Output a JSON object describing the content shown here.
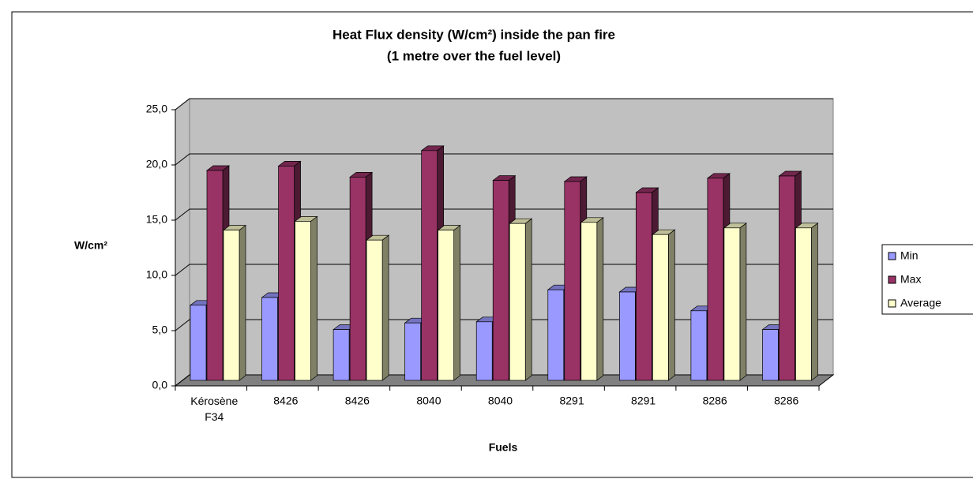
{
  "chart_data": {
    "type": "bar3d",
    "title": "Heat Flux density (W/cm²) inside the pan fire",
    "subtitle": "(1 metre over the fuel level)",
    "x_label": "Fuels",
    "y_label": "W/cm²",
    "categories": [
      "Kérosène F34",
      "8426",
      "8426",
      "8040",
      "8040",
      "8291",
      "8291",
      "8286",
      "8286"
    ],
    "series": [
      {
        "name": "Min",
        "color": "#9999ff",
        "values": [
          6.8,
          7.5,
          4.6,
          5.2,
          5.3,
          8.2,
          8.0,
          6.3,
          4.6
        ]
      },
      {
        "name": "Max",
        "color": "#993366",
        "values": [
          19.0,
          19.4,
          18.4,
          20.8,
          18.1,
          18.0,
          17.0,
          18.3,
          18.5
        ]
      },
      {
        "name": "Average",
        "color": "#ffffcc",
        "values": [
          13.6,
          14.4,
          12.7,
          13.6,
          14.2,
          14.3,
          13.2,
          13.8,
          13.8
        ]
      }
    ],
    "ylim": [
      0,
      25
    ],
    "yticks": [
      {
        "value": 0,
        "label": "0,0"
      },
      {
        "value": 5,
        "label": "5,0"
      },
      {
        "value": 10,
        "label": "10,0"
      },
      {
        "value": 15,
        "label": "15,0"
      },
      {
        "value": 20,
        "label": "20,0"
      },
      {
        "value": 25,
        "label": "25,0"
      }
    ],
    "grid": true,
    "legend": "right"
  }
}
